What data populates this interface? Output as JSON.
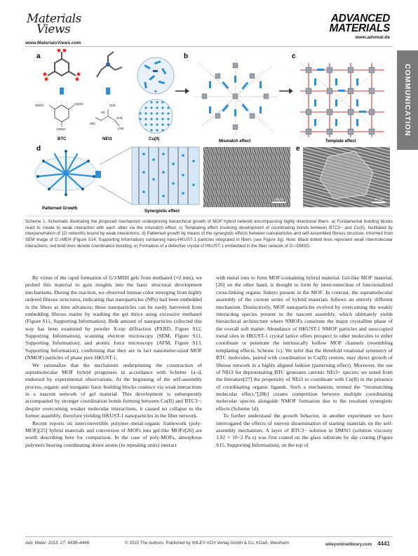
{
  "header": {
    "logo_left_line1": "Materials",
    "logo_left_line2": "Views",
    "url_left": "www.MaterialsViews.com",
    "logo_right_line1": "ADVANCED",
    "logo_right_line2": "MATERIALS",
    "url_right": "www.advmat.de"
  },
  "side_tab": "COMMUNICATION",
  "figure": {
    "panel_labels": [
      "a",
      "b",
      "c",
      "d",
      "e"
    ],
    "labels": {
      "btc": "BTC",
      "net3": "NEt3",
      "cu": "Cu(II)",
      "mismatch": "Mismatch effect",
      "template": "Template effect",
      "patterned": "Patterned Growth",
      "synergistic": "Synergistic effect",
      "scale_d": "10 μm",
      "scale_e": "10 μm",
      "cooh_1": "HOOC",
      "cooh_2": "COOH",
      "cooh_3": "COOH",
      "ch3_a": "CH3",
      "ch3_b": "CH3",
      "ch3_c": "CH3",
      "h2c_a": "H2",
      "h2c_b": "H3C",
      "node_m": "M"
    }
  },
  "caption": "Scheme 1. Schematic illustrating the proposed mechanism underpinning hierarchical growth of MOF hybrid network encompassing highly directional fibers. a) Fundamental building blocks react to create b) weak interaction with each other via the mismatch effect. c) Templating effect involving development of coordinating bonds between BTC3− and Cu(II), facilitated by interpenetration of 1D networks bound by weak interactions. d) Patterned growth by means of the synergistic effects between nanoparticles and self-assembled fibrous structure, informed from SEM image of G⊃MEH (Figure S14, Supporting Information) containing nano-HKUST-1 particles integrated in fibers (see Figure 3g). Note: Black dotted lines represent weak intermolecular interactions; red bold lines denote coordination bonding. e) Formation of a defective crystal of HKUST-1 embedded in the fiber network of G⊃DMSO.",
  "body": {
    "left": [
      "By virtue of the rapid formation of G⊃MEH gels from methanol (≈2 min), we probed this material to gain insights into the basic structural development mechanisms. During the reaction, we observed intense color emerging from highly ordered fibrous structures, indicating that nanoparticles (NPs) had been embedded in the fibers as time advances; these nanoparticles can be easily harvested from embedding fibrous matter by washing the gel thrice using excessive methanol (Figure S11, Supporting Information). Bulk amount of nanoparticles collected this way has been examined by powder X-ray diffraction (PXRD, Figure S12, Supporting Information), scanning electron microscopy (SEM, Figure S11, Supporting Information), and atomic force microscopy (AFM, Figure S13, Supporting Information), confirming that they are in fact nanometer-sized MOF (NMOF) particles of phase pure HKUST-1.",
      "We rationalize that the mechanism underpinning the construction of supramolecular MOF hybrid progresses in accordance with Scheme 1a–d, endorsed by experimental observations. At the beginning of the self-assembly process, organic and inorganic basic building blocks coalesce via weak interactions in a nascent network of gel material. This development is subsequently accompanied by stronger coordination bonds forming between Cu(II) and BTC3−; despite overcoming weaker molecular interactions, it caused no collapse to the former assembly, therefore yielding HKUST-1 nanoparticles in the fiber network.",
      "Recent reports on interconvertible polymer–metal-organic framework (poly-MOF)[25] hybrid materials and conversion of MOFs into gel-like MOFs[26] are worth describing here for comparison. In the case of poly-MOFs, amorphous polymers bearing coordinating donor atoms (in repeating units) interact"
    ],
    "right": [
      "with metal ions to form MOF-containing hybrid material. Gel-like MOF material,[26] on the other hand, is thought to form by interconnection of functionalized cross-linking organic linkers present in the MOF. In contrast, the supramolecular assembly of the current series of hybrid materials follows an entirely different mechanism. Distinctively, MOF nanoparticles evolved by overcoming the weakly interacting species present in the nascent assembly, which ultimately yields hierarchical architecture where NMOFs constitute the major crystalline phase of the overall soft matter. Abundance of HKUST-1 NMOF particles and unoccupied metal sites in HKUST-1 crystal lattice offers prospect to other molecules to either coordinate or penetrate the intrinsically hollow MOF channels (resembling templating effects, Scheme 1c). We infer that the threefold rotational symmetry of BTC molecules, paired with coordination to Cu(II) centres, may direct growth of fibrous network in a highly aligned fashion (patterning effect). Moreover, the use of NEt3 for deprotonating BTC generates cationic NEt3+ species; we noted from the literature[27] the propensity of NEt3 to coordinate with Cu(II) in the presence of coordinating organic ligands. Such a mechanism, termed the “mismatching molecular effect,”[28b] creates competition between multiple coordinating molecular species alongside NMOF formation due to the resultant synergistic effects (Scheme 1d).",
      "To further understand the growth behavior, in another experiment we have interrogated the effects of uneven dissemination of starting materials on the self-assembly mechanism. A layer of BTC3− solution in DMSO (solution viscosity 3.92 × 10−2 Pa s) was first coated on the glass substrate by dip coating (Figure S15, Supporting Information), on the top of"
    ]
  },
  "footer": {
    "journal": "Adv. Mater. 2015, 27, 4438–4446",
    "copyright": "© 2015 The Authors. Published by WILEY-VCH Verlag GmbH & Co. KGaA, Weinheim",
    "site": "wileyonlinelibrary.com",
    "page": "4441"
  },
  "colors": {
    "accent_blue": "#2f8fd6",
    "node_grey": "#9aa3ad",
    "bond_red": "#d33",
    "tab_grey": "#7a7a7a"
  }
}
